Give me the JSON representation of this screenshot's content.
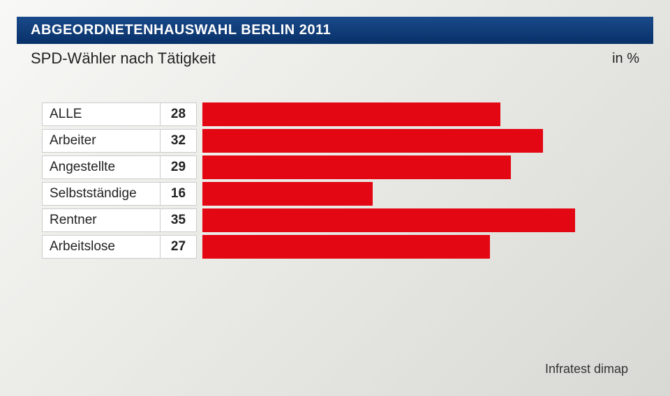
{
  "header": {
    "title": "ABGEORDNETENHAUSWAHL BERLIN 2011"
  },
  "subtitle": "SPD-Wähler nach Tätigkeit",
  "unit_label": "in %",
  "chart": {
    "type": "bar",
    "orientation": "horizontal",
    "bar_color": "#e30613",
    "cell_bg": "#ffffff",
    "cell_border": "#cccccc",
    "label_fontsize": 19,
    "value_fontsize": 19,
    "bar_max_scale": 40,
    "categories": [
      "ALLE",
      "Arbeiter",
      "Angestellte",
      "Selbstständige",
      "Rentner",
      "Arbeitslose"
    ],
    "values": [
      28,
      32,
      29,
      16,
      35,
      27
    ]
  },
  "source": "Infratest dimap",
  "colors": {
    "header_bg_top": "#1a4a8a",
    "header_bg_bottom": "#083068",
    "header_text": "#ffffff",
    "body_text": "#222222",
    "page_bg_light": "#f8f8f6",
    "page_bg_dark": "#d8d8d4"
  }
}
